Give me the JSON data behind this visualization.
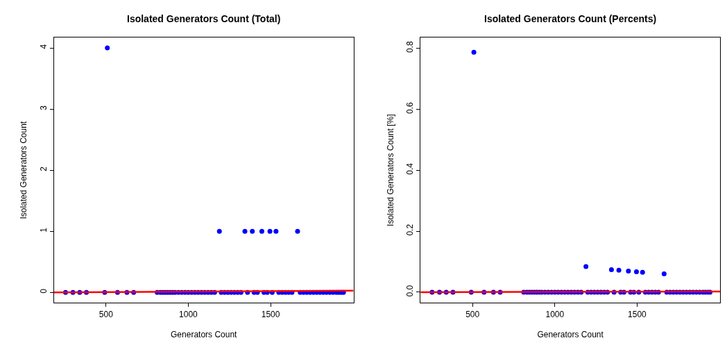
{
  "chart_data": [
    {
      "type": "scatter",
      "title": "Isolated Generators Count (Total)",
      "xlabel": "Generators Count",
      "ylabel": "Isolated Generators Count",
      "xlim": [
        184,
        2004
      ],
      "ylim": [
        -0.17,
        4.17
      ],
      "xticks": [
        500,
        1000,
        1500
      ],
      "yticks": [
        0,
        1,
        2,
        3,
        4
      ],
      "marker": "circle",
      "series": [
        {
          "color": "#0000ff",
          "x": [
            254,
            299,
            340,
            381,
            492,
            508,
            570,
            627,
            668,
            811,
            830,
            845,
            860,
            875,
            890,
            905,
            920,
            940,
            960,
            980,
            1000,
            1020,
            1040,
            1060,
            1080,
            1100,
            1120,
            1140,
            1160,
            1189,
            1200,
            1220,
            1240,
            1260,
            1280,
            1300,
            1320,
            1344,
            1360,
            1389,
            1400,
            1420,
            1447,
            1460,
            1480,
            1496,
            1510,
            1533,
            1550,
            1570,
            1590,
            1610,
            1630,
            1664,
            1680,
            1700,
            1720,
            1740,
            1760,
            1780,
            1800,
            1820,
            1840,
            1860,
            1880,
            1900,
            1915,
            1930,
            1943
          ],
          "values": [
            0,
            0,
            0,
            0,
            0,
            4,
            0,
            0,
            0,
            0,
            0,
            0,
            0,
            0,
            0,
            0,
            0,
            0,
            0,
            0,
            0,
            0,
            0,
            0,
            0,
            0,
            0,
            0,
            0,
            1,
            0,
            0,
            0,
            0,
            0,
            0,
            0,
            1,
            0,
            1,
            0,
            0,
            1,
            0,
            0,
            1,
            0,
            1,
            0,
            0,
            0,
            0,
            0,
            1,
            0,
            0,
            0,
            0,
            0,
            0,
            0,
            0,
            0,
            0,
            0,
            0,
            0,
            0,
            0
          ]
        },
        {
          "type": "line",
          "marker": "none",
          "color": "#ff0000",
          "x": [
            184,
            2004
          ],
          "values": [
            0,
            0.03
          ]
        }
      ]
    },
    {
      "type": "scatter",
      "title": "Isolated Generators Count (Percents)",
      "xlabel": "Generators Count",
      "ylabel": "Isolated Generators Count [%]",
      "xlim": [
        184,
        2004
      ],
      "ylim": [
        -0.035,
        0.835
      ],
      "xticks": [
        500,
        1000,
        1500
      ],
      "yticks": [
        {
          "value": 0,
          "label": "0.0"
        },
        0.2,
        0.4,
        0.6,
        0.8
      ],
      "marker": "circle",
      "series": [
        {
          "color": "#0000ff",
          "x": [
            254,
            299,
            340,
            381,
            492,
            508,
            570,
            627,
            668,
            811,
            830,
            845,
            860,
            875,
            890,
            905,
            920,
            940,
            960,
            980,
            1000,
            1020,
            1040,
            1060,
            1080,
            1100,
            1120,
            1140,
            1160,
            1189,
            1200,
            1220,
            1240,
            1260,
            1280,
            1300,
            1320,
            1344,
            1360,
            1389,
            1400,
            1420,
            1447,
            1460,
            1480,
            1496,
            1510,
            1533,
            1550,
            1570,
            1590,
            1610,
            1630,
            1664,
            1680,
            1700,
            1720,
            1740,
            1760,
            1780,
            1800,
            1820,
            1840,
            1860,
            1880,
            1900,
            1915,
            1930,
            1943
          ],
          "values": [
            0,
            0,
            0,
            0,
            0,
            0.787,
            0,
            0,
            0,
            0,
            0,
            0,
            0,
            0,
            0,
            0,
            0,
            0,
            0,
            0,
            0,
            0,
            0,
            0,
            0,
            0,
            0,
            0,
            0,
            0.084,
            0,
            0,
            0,
            0,
            0,
            0,
            0,
            0.074,
            0,
            0.072,
            0,
            0,
            0.069,
            0,
            0,
            0.067,
            0,
            0.065,
            0,
            0,
            0,
            0,
            0,
            0.06,
            0,
            0,
            0,
            0,
            0,
            0,
            0,
            0,
            0,
            0,
            0,
            0,
            0,
            0,
            0
          ]
        },
        {
          "type": "line",
          "marker": "none",
          "color": "#ff0000",
          "x": [
            184,
            2004
          ],
          "values": [
            0,
            0.002
          ]
        }
      ]
    }
  ]
}
